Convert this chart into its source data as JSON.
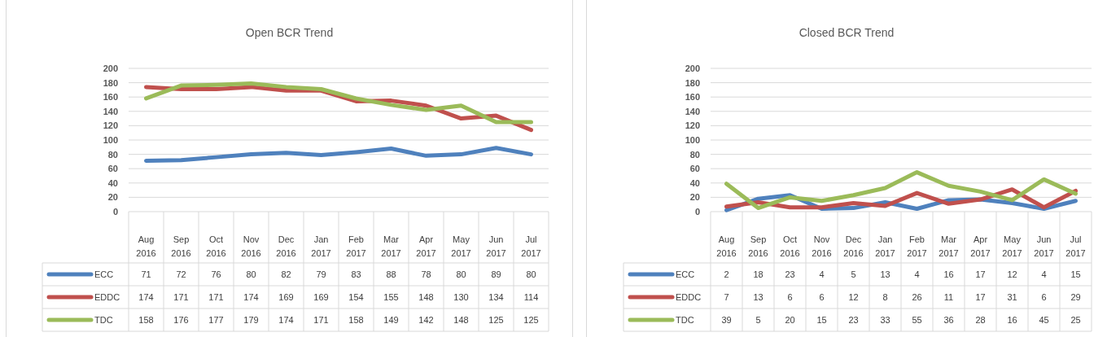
{
  "chart_data": [
    {
      "type": "line",
      "title": "Open BCR Trend",
      "categories": [
        "Aug 2016",
        "Sep 2016",
        "Oct 2016",
        "Nov 2016",
        "Dec 2016",
        "Jan 2017",
        "Feb 2017",
        "Mar 2017",
        "Apr 2017",
        "May 2017",
        "Jun 2017",
        "Jul 2017"
      ],
      "series": [
        {
          "name": "ECC",
          "color": "#4f81bd",
          "values": [
            71,
            72,
            76,
            80,
            82,
            79,
            83,
            88,
            78,
            80,
            89,
            80
          ]
        },
        {
          "name": "EDDC",
          "color": "#c0504d",
          "values": [
            174,
            171,
            171,
            174,
            169,
            169,
            154,
            155,
            148,
            130,
            134,
            114
          ]
        },
        {
          "name": "TDC",
          "color": "#9bbb59",
          "values": [
            158,
            176,
            177,
            179,
            174,
            171,
            158,
            149,
            142,
            148,
            125,
            125
          ]
        }
      ],
      "ylim": [
        0,
        200
      ],
      "yticks": [
        0,
        20,
        40,
        60,
        80,
        100,
        120,
        140,
        160,
        180,
        200
      ],
      "grid": "y",
      "legend": "bottom",
      "data_labels": true
    },
    {
      "type": "line",
      "title": "Closed BCR Trend",
      "categories": [
        "Aug 2016",
        "Sep 2016",
        "Oct 2016",
        "Nov 2016",
        "Dec 2016",
        "Jan 2017",
        "Feb 2017",
        "Mar 2017",
        "Apr 2017",
        "May 2017",
        "Jun 2017",
        "Jul 2017"
      ],
      "series": [
        {
          "name": "ECC",
          "color": "#4f81bd",
          "values": [
            2,
            18,
            23,
            4,
            5,
            13,
            4,
            16,
            17,
            12,
            4,
            15
          ]
        },
        {
          "name": "EDDC",
          "color": "#c0504d",
          "values": [
            7,
            13,
            6,
            6,
            12,
            8,
            26,
            11,
            17,
            31,
            6,
            29
          ]
        },
        {
          "name": "TDC",
          "color": "#9bbb59",
          "values": [
            39,
            5,
            20,
            15,
            23,
            33,
            55,
            36,
            28,
            16,
            45,
            25
          ]
        }
      ],
      "ylim": [
        0,
        200
      ],
      "yticks": [
        0,
        20,
        40,
        60,
        80,
        100,
        120,
        140,
        160,
        180,
        200
      ],
      "grid": "y",
      "legend": "bottom",
      "data_labels": true
    }
  ]
}
